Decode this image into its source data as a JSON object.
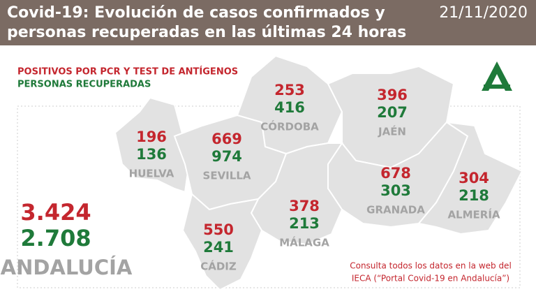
{
  "header": {
    "title": [
      "Covid-19: Evolución de casos confirmados y",
      "personas recuperadas en las últimas 24 horas"
    ],
    "date": "21/11/2020"
  },
  "legend": [
    "POSITIVOS POR PCR Y TEST DE ANTÍGENOS",
    "PERSONAS RECUPERADAS"
  ],
  "provinces": [
    {
      "name": "HUELVA",
      "positivos": "196",
      "recuperados": "136"
    },
    {
      "name": "SEVILLA",
      "positivos": "669",
      "recuperados": "974"
    },
    {
      "name": "CÓRDOBA",
      "positivos": "253",
      "recuperados": "416"
    },
    {
      "name": "JAÉN",
      "positivos": "396",
      "recuperados": "207"
    },
    {
      "name": "GRANADA",
      "positivos": "678",
      "recuperados": "303"
    },
    {
      "name": "ALMERÍA",
      "positivos": "304",
      "recuperados": "218"
    },
    {
      "name": "MÁLAGA",
      "positivos": "378",
      "recuperados": "213"
    },
    {
      "name": "CÁDIZ",
      "positivos": "550",
      "recuperados": "241"
    }
  ],
  "total": {
    "name": "ANDALUCÍA",
    "positivos": "3.424",
    "recuperados": "2.708"
  },
  "footer": [
    "Consulta todos los datos en la web del",
    "IECA (“Portal Covid-19 en Andalucía”)"
  ]
}
